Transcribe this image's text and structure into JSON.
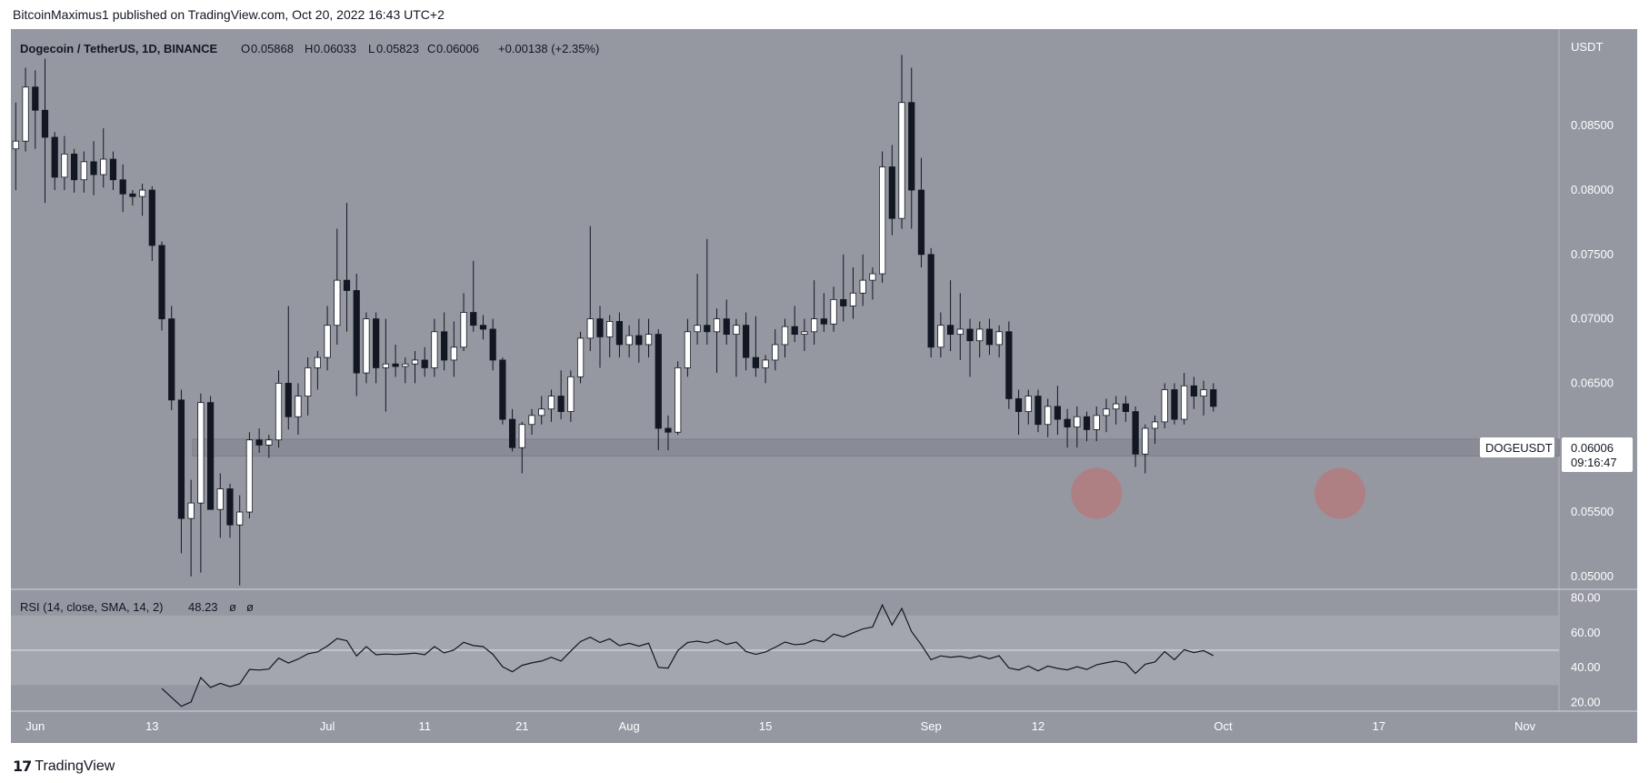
{
  "header": {
    "author": "BitcoinMaximus1",
    "published_text": "published on TradingView.com, Oct 20, 2022 16:43 UTC+2"
  },
  "legend": {
    "symbol": "Dogecoin / TetherUS, 1D, BINANCE",
    "o_label": "O",
    "o_value": "0.05868",
    "h_label": "H",
    "h_value": "0.06033",
    "l_label": "L",
    "l_value": "0.05823",
    "c_label": "C",
    "c_value": "0.06006",
    "change": "+0.00138 (+2.35%)"
  },
  "price_scale": {
    "unit": "USDT",
    "ticks": [
      "0.05000",
      "0.05500",
      "0.06000",
      "0.06500",
      "0.07000",
      "0.07500",
      "0.08000",
      "0.08500"
    ]
  },
  "last_price_tag": {
    "symbol": "DOGEUSDT",
    "price": "0.06006",
    "countdown": "09:16:47"
  },
  "rsi": {
    "label": "RSI (14, close, SMA, 14, 2)",
    "value": "48.23",
    "extra1": "ø",
    "extra2": "ø",
    "ticks": [
      "20.00",
      "40.00",
      "60.00",
      "80.00"
    ]
  },
  "time_axis": {
    "labels": [
      "Jun",
      "13",
      "Jul",
      "11",
      "21",
      "Aug",
      "15",
      "Sep",
      "12",
      "Oct",
      "17",
      "Nov"
    ]
  },
  "footer": {
    "brand": "TradingView"
  },
  "colors": {
    "bg_chart": "#9598a1",
    "up_body": "#ffffff",
    "down_body": "#131722",
    "support_zone": "#868993",
    "circle": "#c26b6b",
    "rsi_band": "#a3a6ad"
  },
  "chart_data": {
    "type": "candlestick",
    "title": "Dogecoin / TetherUS, 1D, BINANCE",
    "y_unit": "USDT",
    "ylim": [
      0.049,
      0.0925
    ],
    "x_range": [
      "2022-05-30",
      "2022-11-05"
    ],
    "support_zone": [
      0.05935,
      0.06065
    ],
    "highlight_circles": [
      {
        "date": "2022-09-18",
        "price": 0.05645
      },
      {
        "date": "2022-10-13",
        "price": 0.05645
      }
    ],
    "candles": [
      {
        "d": "2022-05-30",
        "o": 0.0832,
        "h": 0.0868,
        "l": 0.08,
        "c": 0.0838
      },
      {
        "d": "2022-05-31",
        "o": 0.0838,
        "h": 0.0895,
        "l": 0.083,
        "c": 0.088
      },
      {
        "d": "2022-06-01",
        "o": 0.088,
        "h": 0.0893,
        "l": 0.0832,
        "c": 0.0862
      },
      {
        "d": "2022-06-02",
        "o": 0.0862,
        "h": 0.0902,
        "l": 0.079,
        "c": 0.0841
      },
      {
        "d": "2022-06-03",
        "o": 0.0841,
        "h": 0.0845,
        "l": 0.08,
        "c": 0.081
      },
      {
        "d": "2022-06-04",
        "o": 0.081,
        "h": 0.0842,
        "l": 0.08,
        "c": 0.0828
      },
      {
        "d": "2022-06-05",
        "o": 0.0828,
        "h": 0.0832,
        "l": 0.0798,
        "c": 0.0808
      },
      {
        "d": "2022-06-06",
        "o": 0.0808,
        "h": 0.083,
        "l": 0.0798,
        "c": 0.0822
      },
      {
        "d": "2022-06-07",
        "o": 0.0822,
        "h": 0.0838,
        "l": 0.0796,
        "c": 0.0812
      },
      {
        "d": "2022-06-08",
        "o": 0.0812,
        "h": 0.0848,
        "l": 0.0802,
        "c": 0.0824
      },
      {
        "d": "2022-06-09",
        "o": 0.0824,
        "h": 0.083,
        "l": 0.08,
        "c": 0.0808
      },
      {
        "d": "2022-06-10",
        "o": 0.0808,
        "h": 0.082,
        "l": 0.0783,
        "c": 0.0797
      },
      {
        "d": "2022-06-11",
        "o": 0.0797,
        "h": 0.08,
        "l": 0.0788,
        "c": 0.0795
      },
      {
        "d": "2022-06-12",
        "o": 0.0795,
        "h": 0.0805,
        "l": 0.078,
        "c": 0.08
      },
      {
        "d": "2022-06-13",
        "o": 0.08,
        "h": 0.0803,
        "l": 0.0745,
        "c": 0.0757
      },
      {
        "d": "2022-06-14",
        "o": 0.0757,
        "h": 0.076,
        "l": 0.0691,
        "c": 0.07
      },
      {
        "d": "2022-06-15",
        "o": 0.07,
        "h": 0.071,
        "l": 0.0629,
        "c": 0.0637
      },
      {
        "d": "2022-06-16",
        "o": 0.0637,
        "h": 0.0645,
        "l": 0.0518,
        "c": 0.0545
      },
      {
        "d": "2022-06-17",
        "o": 0.0545,
        "h": 0.0575,
        "l": 0.05,
        "c": 0.0557
      },
      {
        "d": "2022-06-18",
        "o": 0.0557,
        "h": 0.0642,
        "l": 0.0503,
        "c": 0.0635
      },
      {
        "d": "2022-06-19",
        "o": 0.0635,
        "h": 0.064,
        "l": 0.0552,
        "c": 0.0552
      },
      {
        "d": "2022-06-20",
        "o": 0.0552,
        "h": 0.058,
        "l": 0.053,
        "c": 0.0568
      },
      {
        "d": "2022-06-21",
        "o": 0.0568,
        "h": 0.0572,
        "l": 0.053,
        "c": 0.054
      },
      {
        "d": "2022-06-22",
        "o": 0.054,
        "h": 0.0563,
        "l": 0.0493,
        "c": 0.055
      },
      {
        "d": "2022-06-23",
        "o": 0.055,
        "h": 0.0612,
        "l": 0.0545,
        "c": 0.0606
      },
      {
        "d": "2022-06-24",
        "o": 0.0606,
        "h": 0.0615,
        "l": 0.0596,
        "c": 0.0602
      },
      {
        "d": "2022-06-25",
        "o": 0.0602,
        "h": 0.061,
        "l": 0.0592,
        "c": 0.0606
      },
      {
        "d": "2022-06-26",
        "o": 0.0606,
        "h": 0.066,
        "l": 0.06,
        "c": 0.065
      },
      {
        "d": "2022-06-27",
        "o": 0.065,
        "h": 0.071,
        "l": 0.0614,
        "c": 0.0624
      },
      {
        "d": "2022-06-28",
        "o": 0.0624,
        "h": 0.065,
        "l": 0.061,
        "c": 0.064
      },
      {
        "d": "2022-06-29",
        "o": 0.064,
        "h": 0.067,
        "l": 0.0625,
        "c": 0.0662
      },
      {
        "d": "2022-06-30",
        "o": 0.0662,
        "h": 0.0675,
        "l": 0.0645,
        "c": 0.067
      },
      {
        "d": "2022-07-01",
        "o": 0.067,
        "h": 0.071,
        "l": 0.066,
        "c": 0.0695
      },
      {
        "d": "2022-07-02",
        "o": 0.0695,
        "h": 0.077,
        "l": 0.068,
        "c": 0.073
      },
      {
        "d": "2022-07-03",
        "o": 0.073,
        "h": 0.079,
        "l": 0.069,
        "c": 0.0722
      },
      {
        "d": "2022-07-04",
        "o": 0.0722,
        "h": 0.0735,
        "l": 0.064,
        "c": 0.0658
      },
      {
        "d": "2022-07-05",
        "o": 0.0658,
        "h": 0.0705,
        "l": 0.065,
        "c": 0.07
      },
      {
        "d": "2022-07-06",
        "o": 0.07,
        "h": 0.0705,
        "l": 0.065,
        "c": 0.0662
      },
      {
        "d": "2022-07-07",
        "o": 0.0662,
        "h": 0.07,
        "l": 0.0628,
        "c": 0.0665
      },
      {
        "d": "2022-07-08",
        "o": 0.0665,
        "h": 0.068,
        "l": 0.0655,
        "c": 0.0663
      },
      {
        "d": "2022-07-09",
        "o": 0.0663,
        "h": 0.067,
        "l": 0.065,
        "c": 0.0665
      },
      {
        "d": "2022-07-10",
        "o": 0.0665,
        "h": 0.0675,
        "l": 0.065,
        "c": 0.0668
      },
      {
        "d": "2022-07-11",
        "o": 0.0668,
        "h": 0.0678,
        "l": 0.0655,
        "c": 0.0662
      },
      {
        "d": "2022-07-12",
        "o": 0.0662,
        "h": 0.07,
        "l": 0.0655,
        "c": 0.069
      },
      {
        "d": "2022-07-13",
        "o": 0.069,
        "h": 0.0705,
        "l": 0.066,
        "c": 0.0668
      },
      {
        "d": "2022-07-14",
        "o": 0.0668,
        "h": 0.0698,
        "l": 0.0655,
        "c": 0.0678
      },
      {
        "d": "2022-07-15",
        "o": 0.0678,
        "h": 0.072,
        "l": 0.0675,
        "c": 0.0705
      },
      {
        "d": "2022-07-16",
        "o": 0.0705,
        "h": 0.0745,
        "l": 0.069,
        "c": 0.0695
      },
      {
        "d": "2022-07-17",
        "o": 0.0695,
        "h": 0.0703,
        "l": 0.0684,
        "c": 0.0692
      },
      {
        "d": "2022-07-18",
        "o": 0.0692,
        "h": 0.07,
        "l": 0.066,
        "c": 0.0668
      },
      {
        "d": "2022-07-19",
        "o": 0.0668,
        "h": 0.067,
        "l": 0.0618,
        "c": 0.0622
      },
      {
        "d": "2022-07-20",
        "o": 0.0622,
        "h": 0.063,
        "l": 0.0597,
        "c": 0.06
      },
      {
        "d": "2022-07-21",
        "o": 0.06,
        "h": 0.062,
        "l": 0.058,
        "c": 0.0618
      },
      {
        "d": "2022-07-22",
        "o": 0.0618,
        "h": 0.063,
        "l": 0.061,
        "c": 0.0625
      },
      {
        "d": "2022-07-23",
        "o": 0.0625,
        "h": 0.064,
        "l": 0.0618,
        "c": 0.063
      },
      {
        "d": "2022-07-24",
        "o": 0.063,
        "h": 0.0645,
        "l": 0.062,
        "c": 0.064
      },
      {
        "d": "2022-07-25",
        "o": 0.064,
        "h": 0.066,
        "l": 0.0622,
        "c": 0.0628
      },
      {
        "d": "2022-07-26",
        "o": 0.0628,
        "h": 0.066,
        "l": 0.062,
        "c": 0.0655
      },
      {
        "d": "2022-07-27",
        "o": 0.0655,
        "h": 0.069,
        "l": 0.065,
        "c": 0.0685
      },
      {
        "d": "2022-07-28",
        "o": 0.0685,
        "h": 0.0772,
        "l": 0.0675,
        "c": 0.07
      },
      {
        "d": "2022-07-29",
        "o": 0.07,
        "h": 0.071,
        "l": 0.0662,
        "c": 0.0686
      },
      {
        "d": "2022-07-30",
        "o": 0.0686,
        "h": 0.0703,
        "l": 0.067,
        "c": 0.0698
      },
      {
        "d": "2022-07-31",
        "o": 0.0698,
        "h": 0.0705,
        "l": 0.067,
        "c": 0.068
      },
      {
        "d": "2022-08-01",
        "o": 0.068,
        "h": 0.0695,
        "l": 0.067,
        "c": 0.0687
      },
      {
        "d": "2022-08-02",
        "o": 0.0687,
        "h": 0.07,
        "l": 0.0666,
        "c": 0.068
      },
      {
        "d": "2022-08-03",
        "o": 0.068,
        "h": 0.07,
        "l": 0.067,
        "c": 0.0688
      },
      {
        "d": "2022-08-04",
        "o": 0.0688,
        "h": 0.0692,
        "l": 0.0598,
        "c": 0.0615
      },
      {
        "d": "2022-08-05",
        "o": 0.0615,
        "h": 0.0625,
        "l": 0.0598,
        "c": 0.0612
      },
      {
        "d": "2022-08-06",
        "o": 0.0612,
        "h": 0.0667,
        "l": 0.061,
        "c": 0.0662
      },
      {
        "d": "2022-08-07",
        "o": 0.0662,
        "h": 0.07,
        "l": 0.0655,
        "c": 0.069
      },
      {
        "d": "2022-08-08",
        "o": 0.069,
        "h": 0.0735,
        "l": 0.068,
        "c": 0.0695
      },
      {
        "d": "2022-08-09",
        "o": 0.0695,
        "h": 0.0762,
        "l": 0.068,
        "c": 0.069
      },
      {
        "d": "2022-08-10",
        "o": 0.069,
        "h": 0.0708,
        "l": 0.0658,
        "c": 0.07
      },
      {
        "d": "2022-08-11",
        "o": 0.07,
        "h": 0.0715,
        "l": 0.068,
        "c": 0.0688
      },
      {
        "d": "2022-08-12",
        "o": 0.0688,
        "h": 0.07,
        "l": 0.0655,
        "c": 0.0695
      },
      {
        "d": "2022-08-13",
        "o": 0.0695,
        "h": 0.0705,
        "l": 0.066,
        "c": 0.067
      },
      {
        "d": "2022-08-14",
        "o": 0.067,
        "h": 0.0702,
        "l": 0.0655,
        "c": 0.0662
      },
      {
        "d": "2022-08-15",
        "o": 0.0662,
        "h": 0.0672,
        "l": 0.065,
        "c": 0.0668
      },
      {
        "d": "2022-08-16",
        "o": 0.0668,
        "h": 0.0692,
        "l": 0.066,
        "c": 0.068
      },
      {
        "d": "2022-08-17",
        "o": 0.068,
        "h": 0.07,
        "l": 0.067,
        "c": 0.0694
      },
      {
        "d": "2022-08-18",
        "o": 0.0694,
        "h": 0.071,
        "l": 0.0682,
        "c": 0.0688
      },
      {
        "d": "2022-08-19",
        "o": 0.0688,
        "h": 0.07,
        "l": 0.0675,
        "c": 0.069
      },
      {
        "d": "2022-08-20",
        "o": 0.069,
        "h": 0.073,
        "l": 0.068,
        "c": 0.07
      },
      {
        "d": "2022-08-21",
        "o": 0.07,
        "h": 0.072,
        "l": 0.069,
        "c": 0.0696
      },
      {
        "d": "2022-08-22",
        "o": 0.0696,
        "h": 0.0725,
        "l": 0.069,
        "c": 0.0715
      },
      {
        "d": "2022-08-23",
        "o": 0.0715,
        "h": 0.075,
        "l": 0.0698,
        "c": 0.071
      },
      {
        "d": "2022-08-24",
        "o": 0.071,
        "h": 0.074,
        "l": 0.07,
        "c": 0.072
      },
      {
        "d": "2022-08-25",
        "o": 0.072,
        "h": 0.075,
        "l": 0.071,
        "c": 0.073
      },
      {
        "d": "2022-08-26",
        "o": 0.073,
        "h": 0.074,
        "l": 0.0715,
        "c": 0.0735
      },
      {
        "d": "2022-08-27",
        "o": 0.0735,
        "h": 0.083,
        "l": 0.0728,
        "c": 0.0818
      },
      {
        "d": "2022-08-28",
        "o": 0.0818,
        "h": 0.0835,
        "l": 0.0765,
        "c": 0.0778
      },
      {
        "d": "2022-08-29",
        "o": 0.0778,
        "h": 0.0905,
        "l": 0.077,
        "c": 0.0868
      },
      {
        "d": "2022-08-30",
        "o": 0.0868,
        "h": 0.0895,
        "l": 0.077,
        "c": 0.08
      },
      {
        "d": "2022-08-31",
        "o": 0.08,
        "h": 0.0825,
        "l": 0.074,
        "c": 0.075
      },
      {
        "d": "2022-09-01",
        "o": 0.075,
        "h": 0.0755,
        "l": 0.067,
        "c": 0.0678
      },
      {
        "d": "2022-09-02",
        "o": 0.0678,
        "h": 0.0705,
        "l": 0.067,
        "c": 0.0695
      },
      {
        "d": "2022-09-03",
        "o": 0.0695,
        "h": 0.073,
        "l": 0.0675,
        "c": 0.0688
      },
      {
        "d": "2022-09-04",
        "o": 0.0688,
        "h": 0.072,
        "l": 0.0668,
        "c": 0.0692
      },
      {
        "d": "2022-09-05",
        "o": 0.0692,
        "h": 0.07,
        "l": 0.0655,
        "c": 0.0683
      },
      {
        "d": "2022-09-06",
        "o": 0.0683,
        "h": 0.0698,
        "l": 0.067,
        "c": 0.0692
      },
      {
        "d": "2022-09-07",
        "o": 0.0692,
        "h": 0.07,
        "l": 0.0672,
        "c": 0.068
      },
      {
        "d": "2022-09-08",
        "o": 0.068,
        "h": 0.0695,
        "l": 0.067,
        "c": 0.069
      },
      {
        "d": "2022-09-09",
        "o": 0.069,
        "h": 0.0698,
        "l": 0.063,
        "c": 0.0638
      },
      {
        "d": "2022-09-10",
        "o": 0.0638,
        "h": 0.0645,
        "l": 0.061,
        "c": 0.0628
      },
      {
        "d": "2022-09-11",
        "o": 0.0628,
        "h": 0.0645,
        "l": 0.0618,
        "c": 0.064
      },
      {
        "d": "2022-09-12",
        "o": 0.064,
        "h": 0.0645,
        "l": 0.0612,
        "c": 0.0618
      },
      {
        "d": "2022-09-13",
        "o": 0.0618,
        "h": 0.0638,
        "l": 0.0608,
        "c": 0.0632
      },
      {
        "d": "2022-09-14",
        "o": 0.0632,
        "h": 0.0648,
        "l": 0.061,
        "c": 0.0622
      },
      {
        "d": "2022-09-15",
        "o": 0.0622,
        "h": 0.063,
        "l": 0.06,
        "c": 0.0616
      },
      {
        "d": "2022-09-16",
        "o": 0.0616,
        "h": 0.0632,
        "l": 0.06,
        "c": 0.0624
      },
      {
        "d": "2022-09-17",
        "o": 0.0624,
        "h": 0.0628,
        "l": 0.0605,
        "c": 0.0614
      },
      {
        "d": "2022-09-18",
        "o": 0.0614,
        "h": 0.0632,
        "l": 0.0605,
        "c": 0.0625
      },
      {
        "d": "2022-09-19",
        "o": 0.0625,
        "h": 0.0638,
        "l": 0.0612,
        "c": 0.063
      },
      {
        "d": "2022-09-20",
        "o": 0.063,
        "h": 0.064,
        "l": 0.0618,
        "c": 0.0634
      },
      {
        "d": "2022-09-21",
        "o": 0.0634,
        "h": 0.064,
        "l": 0.062,
        "c": 0.0628
      },
      {
        "d": "2022-09-22",
        "o": 0.0628,
        "h": 0.0632,
        "l": 0.0585,
        "c": 0.0595
      },
      {
        "d": "2022-09-23",
        "o": 0.0595,
        "h": 0.0618,
        "l": 0.058,
        "c": 0.0615
      },
      {
        "d": "2022-09-24",
        "o": 0.0615,
        "h": 0.0625,
        "l": 0.0603,
        "c": 0.062
      },
      {
        "d": "2022-09-25",
        "o": 0.062,
        "h": 0.065,
        "l": 0.0615,
        "c": 0.0645
      },
      {
        "d": "2022-09-26",
        "o": 0.0645,
        "h": 0.065,
        "l": 0.0618,
        "c": 0.0622
      },
      {
        "d": "2022-09-27",
        "o": 0.0622,
        "h": 0.0658,
        "l": 0.0618,
        "c": 0.0648
      },
      {
        "d": "2022-09-28",
        "o": 0.0648,
        "h": 0.0655,
        "l": 0.063,
        "c": 0.064
      },
      {
        "d": "2022-09-29",
        "o": 0.064,
        "h": 0.0652,
        "l": 0.0625,
        "c": 0.0645
      },
      {
        "d": "2022-09-30",
        "o": 0.0645,
        "h": 0.065,
        "l": 0.0628,
        "c": 0.0632
      }
    ]
  }
}
